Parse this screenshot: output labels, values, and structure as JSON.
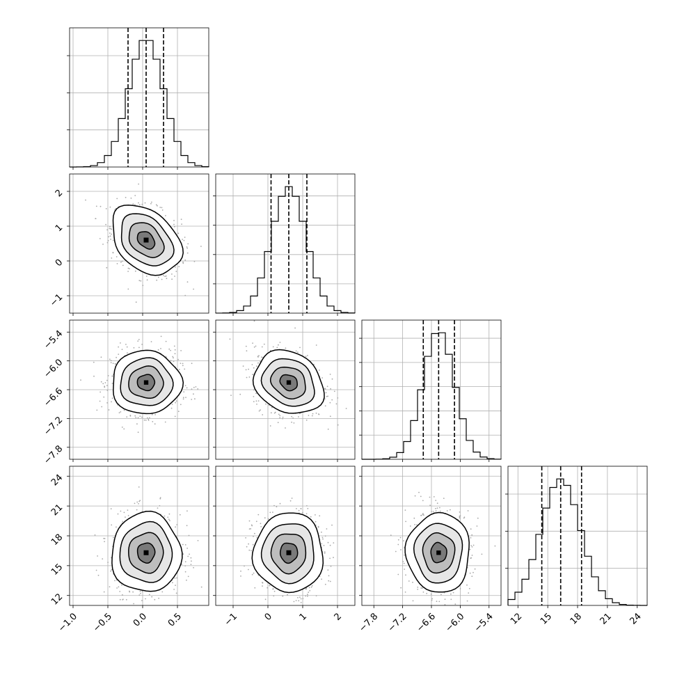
{
  "chart_data": {
    "type": "corner",
    "grid": true,
    "parameters": [
      {
        "range": [
          -1.05,
          0.95
        ],
        "ticks": [
          -1.0,
          -0.5,
          0.0,
          0.5
        ],
        "tick_labels": [
          "−1.0",
          "−0.5",
          "0.0",
          "0.5"
        ],
        "mean": 0.05,
        "sigma": 0.25,
        "quantiles": [
          -0.21,
          0.05,
          0.3
        ],
        "hist_ticks": 3
      },
      {
        "range": [
          -1.5,
          2.5
        ],
        "ticks": [
          -1,
          0,
          1,
          2
        ],
        "tick_labels": [
          "−1",
          "0",
          "1",
          "2"
        ],
        "mean": 0.6,
        "sigma": 0.5,
        "quantiles": [
          0.09,
          0.6,
          1.12
        ],
        "hist_ticks": 4
      },
      {
        "range": [
          -8.05,
          -5.15
        ],
        "ticks": [
          -7.8,
          -7.2,
          -6.6,
          -6.0,
          -5.4
        ],
        "tick_labels": [
          "−7.8",
          "−7.2",
          "−6.6",
          "−6.0",
          "−5.4"
        ],
        "mean": -6.45,
        "sigma": 0.33,
        "quantiles": [
          -6.77,
          -6.45,
          -6.12
        ],
        "hist_ticks": 5
      },
      {
        "range": [
          11.0,
          25.0
        ],
        "ticks": [
          12,
          15,
          18,
          21,
          24
        ],
        "tick_labels": [
          "12",
          "15",
          "18",
          "21",
          "24"
        ],
        "mean": 16.3,
        "sigma": 2.0,
        "quantiles": [
          14.4,
          16.3,
          18.4
        ],
        "hist_ticks": 3
      }
    ],
    "correlations": {
      "1-0": -0.35,
      "2-0": 0.0,
      "2-1": -0.2,
      "3-0": 0.0,
      "3-1": 0.0,
      "3-2": 0.0
    },
    "contour_levels_sigma": [
      0.5,
      1.0,
      1.5,
      2.0
    ],
    "hist_bins": 20,
    "colors": {
      "line": "#000000",
      "points": "#a8a8a8",
      "grid": "#b0b0b0"
    }
  }
}
